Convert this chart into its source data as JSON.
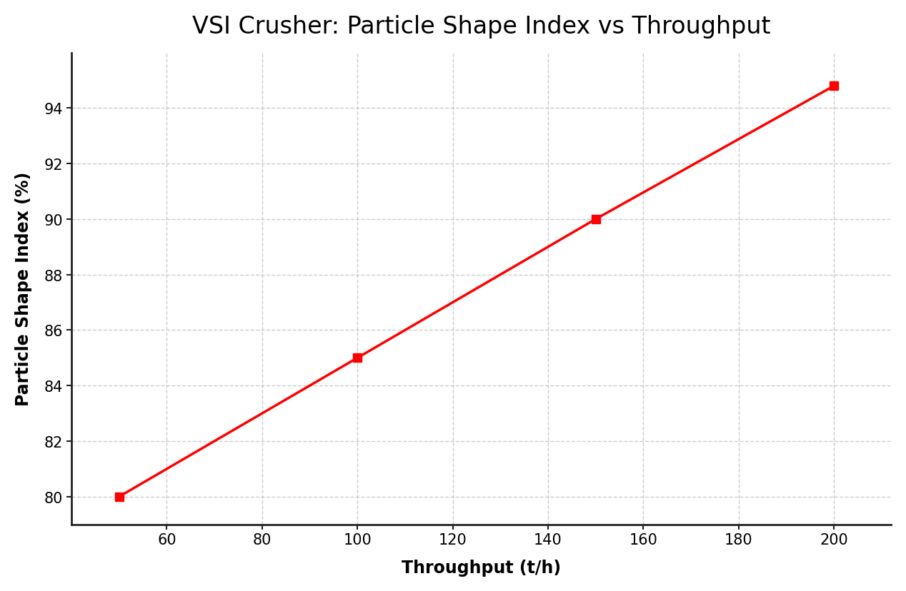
{
  "title": "VSI Crusher: Particle Shape Index vs Throughput",
  "xlabel": "Throughput (t/h)",
  "ylabel": "Particle Shape Index (%)",
  "x": [
    50,
    100,
    150,
    200
  ],
  "y": [
    80,
    85,
    90,
    94.8
  ],
  "line_color": "#ff0000",
  "marker": "s",
  "marker_color": "#ff0000",
  "marker_size": 9,
  "linewidth": 2.5,
  "xlim": [
    40,
    212
  ],
  "ylim": [
    79.0,
    96.0
  ],
  "xticks": [
    60,
    80,
    100,
    120,
    140,
    160,
    180,
    200
  ],
  "yticks": [
    80,
    82,
    84,
    86,
    88,
    90,
    92,
    94
  ],
  "grid_color": "#c0c0c0",
  "grid_linestyle": "--",
  "grid_alpha": 0.8,
  "background_color": "#ffffff",
  "title_fontsize": 24,
  "label_fontsize": 17,
  "tick_fontsize": 15,
  "spine_color": "#222222",
  "spine_linewidth": 2.0
}
